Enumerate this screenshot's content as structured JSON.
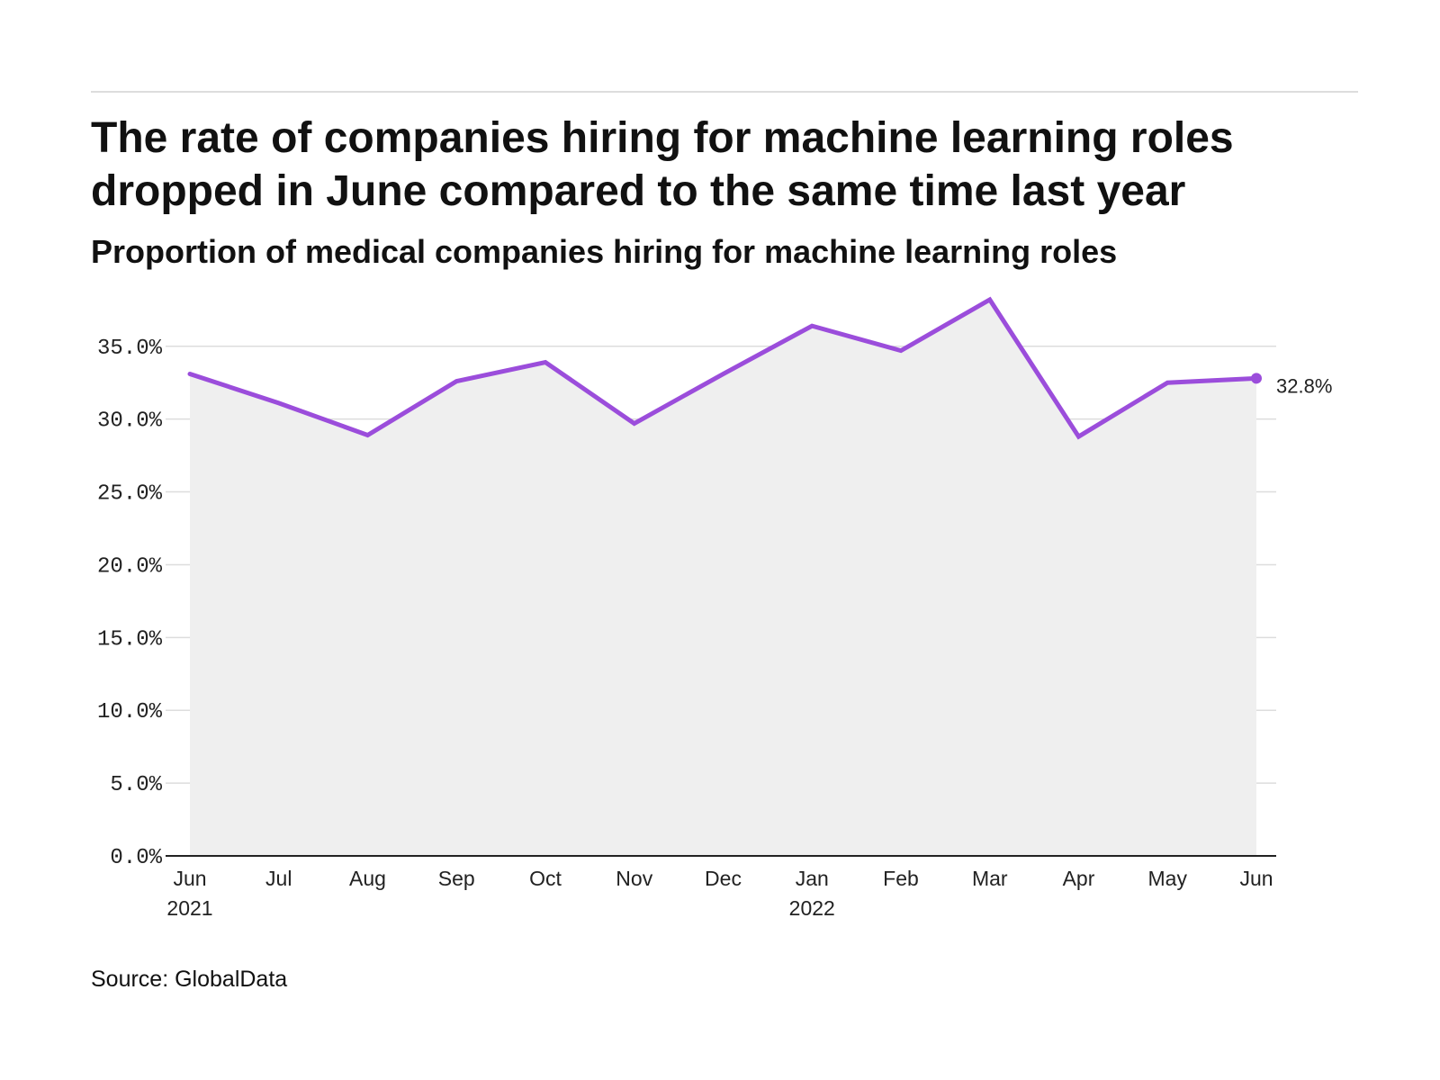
{
  "title": "The rate of companies hiring for machine learning roles dropped in June compared to the same time last year",
  "subtitle": "Proportion of medical companies hiring for machine learning roles",
  "source": "Source: GlobalData",
  "colors": {
    "line": "#9b4ddb",
    "area": "#efefef",
    "grid": "#dddddd",
    "axis": "#222222"
  },
  "chart_data": {
    "type": "line",
    "title": "The rate of companies hiring for machine learning roles dropped in June compared to the same time last year",
    "subtitle": "Proportion of medical companies hiring for machine learning roles",
    "x": [
      "Jun 2021",
      "Jul 2021",
      "Aug 2021",
      "Sep 2021",
      "Oct 2021",
      "Nov 2021",
      "Dec 2021",
      "Jan 2022",
      "Feb 2022",
      "Mar 2022",
      "Apr 2022",
      "May 2022",
      "Jun 2022"
    ],
    "x_tick_labels": [
      {
        "month": "Jun",
        "year": "2021"
      },
      {
        "month": "Jul",
        "year": ""
      },
      {
        "month": "Aug",
        "year": ""
      },
      {
        "month": "Sep",
        "year": ""
      },
      {
        "month": "Oct",
        "year": ""
      },
      {
        "month": "Nov",
        "year": ""
      },
      {
        "month": "Dec",
        "year": ""
      },
      {
        "month": "Jan",
        "year": "2022"
      },
      {
        "month": "Feb",
        "year": ""
      },
      {
        "month": "Mar",
        "year": ""
      },
      {
        "month": "Apr",
        "year": ""
      },
      {
        "month": "May",
        "year": ""
      },
      {
        "month": "Jun",
        "year": ""
      }
    ],
    "series": [
      {
        "values": [
          33.1,
          31.1,
          28.9,
          32.6,
          33.9,
          29.7,
          33.1,
          36.4,
          34.7,
          38.2,
          28.8,
          32.5,
          32.8
        ]
      }
    ],
    "y_ticks": [
      0,
      5,
      10,
      15,
      20,
      25,
      30,
      35
    ],
    "y_tick_labels": [
      "0.0%",
      "5.0%",
      "10.0%",
      "15.0%",
      "20.0%",
      "25.0%",
      "30.0%",
      "35.0%"
    ],
    "ylim": [
      0,
      38.2
    ],
    "area_fill": true,
    "grid": true,
    "end_label": "32.8%"
  }
}
